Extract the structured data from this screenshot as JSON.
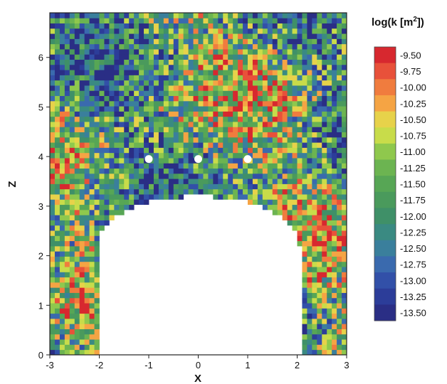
{
  "chart_data": {
    "type": "heatmap",
    "title": "",
    "xlabel": "X",
    "ylabel": "Z",
    "xlim": [
      -3,
      3
    ],
    "ylim": [
      0,
      6.9
    ],
    "x_ticks": [
      "-3",
      "-2",
      "-1",
      "0",
      "1",
      "2",
      "3"
    ],
    "x_tick_values": [
      -3,
      -2,
      -1,
      0,
      1,
      2,
      3
    ],
    "y_ticks": [
      "0",
      "1",
      "2",
      "3",
      "4",
      "5",
      "6"
    ],
    "y_tick_values": [
      0,
      1,
      2,
      3,
      4,
      5,
      6
    ],
    "grid": false,
    "colorbar": {
      "title": "log(k [m",
      "title_sup": "2",
      "title_end": "])",
      "labels": [
        "-9.50",
        "-9.75",
        "-10.00",
        "-10.25",
        "-10.50",
        "-10.75",
        "-11.00",
        "-11.25",
        "-11.50",
        "-11.75",
        "-12.00",
        "-12.25",
        "-12.50",
        "-12.75",
        "-13.00",
        "-13.25",
        "-13.50"
      ],
      "levels": [
        -9.5,
        -9.75,
        -10.0,
        -10.25,
        -10.5,
        -10.75,
        -11.0,
        -11.25,
        -11.5,
        -11.75,
        -12.0,
        -12.25,
        -12.5,
        -12.75,
        -13.0,
        -13.25,
        -13.5
      ],
      "colors": [
        "#d7282f",
        "#e8513a",
        "#f07c3e",
        "#f5a444",
        "#e7d24a",
        "#c8dc4a",
        "#8fc84d",
        "#6cb451",
        "#57a655",
        "#4a9a5c",
        "#3f9068",
        "#3a8a82",
        "#3a7f9c",
        "#3a6aae",
        "#3250a8",
        "#2c3d99",
        "#2a2e85"
      ],
      "range": [
        -13.5,
        -9.5
      ]
    },
    "field_description_grid": {
      "nx": 60,
      "nz": 66
    },
    "excavation": {
      "x_left": -2.05,
      "x_right": 2.05,
      "z_springline": 2.2,
      "z_crown": 3.2
    },
    "markers": [
      {
        "x": -1.0,
        "z": 3.95
      },
      {
        "x": 0.0,
        "z": 3.95
      },
      {
        "x": 1.0,
        "z": 3.95
      }
    ]
  }
}
